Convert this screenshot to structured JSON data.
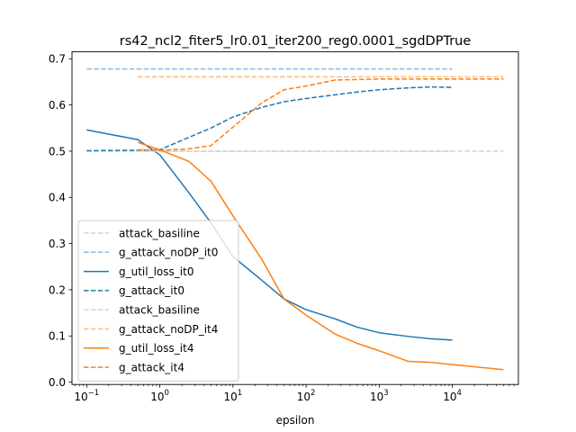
{
  "chart_data": {
    "type": "line",
    "title": "rs42_ncl2_fiter5_lr0.01_iter200_reg0.0001_sgdDPTrue",
    "xlabel": "epsilon",
    "ylabel": "",
    "xscale": "log",
    "xlim": [
      0.063,
      80000
    ],
    "ylim": [
      -0.005,
      0.715
    ],
    "x_ticks": [
      {
        "value": 0.1,
        "base": "10",
        "exp": "−1"
      },
      {
        "value": 1,
        "base": "10",
        "exp": "0"
      },
      {
        "value": 10,
        "base": "10",
        "exp": "1"
      },
      {
        "value": 100,
        "base": "10",
        "exp": "2"
      },
      {
        "value": 1000,
        "base": "10",
        "exp": "3"
      },
      {
        "value": 10000,
        "base": "10",
        "exp": "4"
      }
    ],
    "y_ticks": [
      {
        "value": 0.0,
        "label": "0.0"
      },
      {
        "value": 0.1,
        "label": "0.1"
      },
      {
        "value": 0.2,
        "label": "0.2"
      },
      {
        "value": 0.3,
        "label": "0.3"
      },
      {
        "value": 0.4,
        "label": "0.4"
      },
      {
        "value": 0.5,
        "label": "0.5"
      },
      {
        "value": 0.6,
        "label": "0.6"
      },
      {
        "value": 0.7,
        "label": "0.7"
      }
    ],
    "grid": false,
    "legend_position": "lower-left",
    "series": [
      {
        "name": "attack_basiline",
        "color": "#d3d3d3",
        "dash": "dashed",
        "x": [
          0.1,
          10000
        ],
        "y": [
          0.5,
          0.5
        ]
      },
      {
        "name": "g_attack_noDP_it0",
        "color": "#8db8dd",
        "dash": "dashed",
        "x": [
          0.1,
          10000
        ],
        "y": [
          0.678,
          0.678
        ]
      },
      {
        "name": "g_util_loss_it0",
        "color": "#1f77b4",
        "dash": "solid",
        "x": [
          0.1,
          0.5,
          1,
          2.5,
          5,
          10,
          25,
          50,
          100,
          250,
          500,
          1000,
          2500,
          5000,
          10000
        ],
        "y": [
          0.546,
          0.525,
          0.492,
          0.41,
          0.345,
          0.272,
          0.22,
          0.18,
          0.157,
          0.137,
          0.119,
          0.107,
          0.099,
          0.094,
          0.091
        ]
      },
      {
        "name": "g_attack_it0",
        "color": "#1f77b4",
        "dash": "dashed",
        "x": [
          0.1,
          0.5,
          1,
          2.5,
          5,
          10,
          25,
          50,
          100,
          250,
          500,
          1000,
          2500,
          5000,
          10000
        ],
        "y": [
          0.501,
          0.502,
          0.503,
          0.53,
          0.55,
          0.574,
          0.595,
          0.607,
          0.614,
          0.622,
          0.628,
          0.633,
          0.637,
          0.639,
          0.638
        ]
      },
      {
        "name": "attack_basiline",
        "color": "#d3d3d3",
        "dash": "dashed",
        "x": [
          0.5,
          50000
        ],
        "y": [
          0.5,
          0.5
        ]
      },
      {
        "name": "g_attack_noDP_it4",
        "color": "#ffbb78",
        "dash": "dashed",
        "x": [
          0.5,
          50000
        ],
        "y": [
          0.661,
          0.661
        ]
      },
      {
        "name": "g_util_loss_it4",
        "color": "#ff7f0e",
        "dash": "solid",
        "x": [
          0.5,
          1,
          2.5,
          5,
          10,
          25,
          50,
          100,
          250,
          500,
          1000,
          2500,
          5000,
          10000,
          50000
        ],
        "y": [
          0.519,
          0.503,
          0.478,
          0.435,
          0.36,
          0.265,
          0.18,
          0.145,
          0.104,
          0.084,
          0.068,
          0.045,
          0.043,
          0.038,
          0.027
        ]
      },
      {
        "name": "g_attack_it4",
        "color": "#ff7f0e",
        "dash": "dashed",
        "x": [
          0.5,
          1,
          2.5,
          5,
          10,
          25,
          50,
          100,
          250,
          500,
          1000,
          2500,
          5000,
          10000,
          50000
        ],
        "y": [
          0.503,
          0.502,
          0.505,
          0.512,
          0.552,
          0.605,
          0.633,
          0.641,
          0.654,
          0.655,
          0.656,
          0.656,
          0.656,
          0.656,
          0.656
        ]
      }
    ]
  }
}
